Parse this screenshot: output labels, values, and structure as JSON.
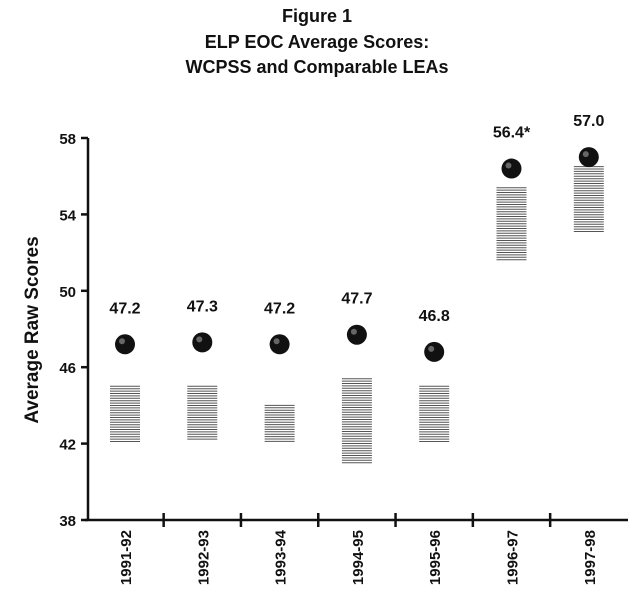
{
  "chart_data": {
    "type": "scatter",
    "title": "Figure 1",
    "subtitle_lines": [
      "ELP EOC Average Scores:",
      "WCPSS and Comparable LEAs"
    ],
    "xlabel": "",
    "ylabel": "Average Raw Scores",
    "ylim": [
      38,
      58
    ],
    "yticks": [
      38,
      42,
      46,
      50,
      54,
      58
    ],
    "categories": [
      "1991-92",
      "1992-93",
      "1993-94",
      "1994-95",
      "1995-96",
      "1996-97",
      "1997-98"
    ],
    "series": [
      {
        "marker": "circle",
        "values": [
          47.2,
          47.3,
          47.2,
          47.7,
          46.8,
          56.4,
          57.0
        ],
        "labels": [
          "47.2",
          "47.3",
          "47.2",
          "47.7",
          "46.8",
          "56.4*",
          "57.0"
        ],
        "color": "#111111"
      },
      {
        "marker": "range-band",
        "ranges": [
          [
            42.0,
            45.0
          ],
          [
            42.2,
            45.0
          ],
          [
            42.0,
            44.0
          ],
          [
            41.0,
            45.4
          ],
          [
            42.1,
            45.0
          ],
          [
            51.6,
            55.4
          ],
          [
            53.0,
            56.5
          ]
        ],
        "color": "#555555"
      }
    ],
    "grid": false,
    "legend": "none"
  }
}
